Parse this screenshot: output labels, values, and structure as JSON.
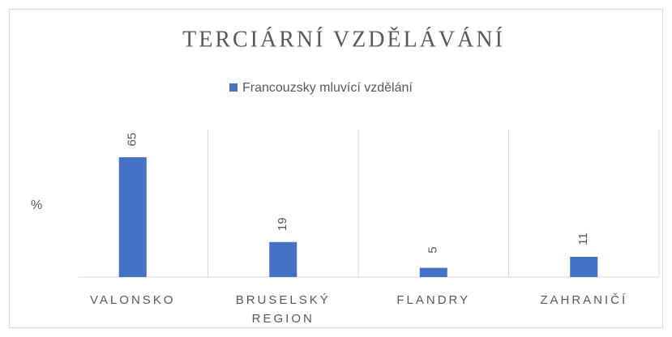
{
  "chart_data": {
    "type": "bar",
    "title": "TERCIÁRNÍ VZDĚLÁVÁNÍ",
    "ylabel": "%",
    "categories": [
      "VALONSKO",
      "BRUSELSKÝ REGION",
      "FLANDRY",
      "ZAHRANIČÍ"
    ],
    "series": [
      {
        "name": "Francouzsky mluvící vzdělání",
        "color": "#4472c4",
        "values": [
          65,
          19,
          5,
          11
        ]
      }
    ],
    "ylim": [
      0,
      80
    ],
    "grid": false
  }
}
